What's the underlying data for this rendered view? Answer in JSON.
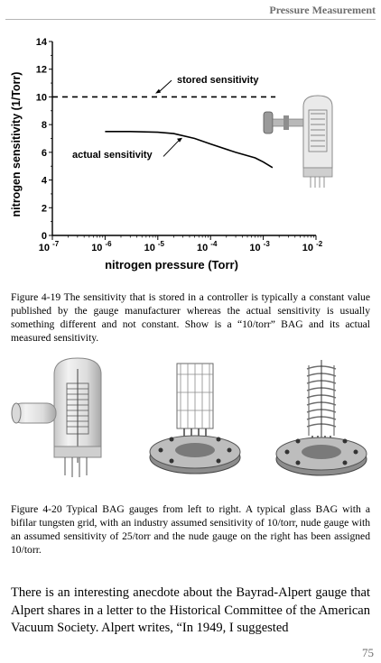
{
  "header": {
    "running_title": "Pressure Measurement"
  },
  "chart_data": {
    "type": "line",
    "xlabel": "nitrogen pressure (Torr)",
    "ylabel": "nitrogen sensitivity (1/Torr)",
    "x_scale": "log",
    "xlim": [
      1e-07,
      0.01
    ],
    "ylim": [
      0,
      14
    ],
    "yticks": [
      0,
      2,
      4,
      6,
      8,
      10,
      12,
      14
    ],
    "xtick_labels": [
      {
        "base": "10",
        "exp": "-7"
      },
      {
        "base": "10",
        "exp": "-6"
      },
      {
        "base": "10",
        "exp": "-5"
      },
      {
        "base": "10",
        "exp": "-4"
      },
      {
        "base": "10",
        "exp": "-3"
      },
      {
        "base": "10",
        "exp": "-2"
      }
    ],
    "series": [
      {
        "name": "stored sensitivity",
        "style": "dashed",
        "x": [
          1e-07,
          0.0017
        ],
        "y": [
          10,
          10
        ]
      },
      {
        "name": "actual sensitivity",
        "style": "solid",
        "x": [
          1e-06,
          3e-06,
          1e-05,
          2e-05,
          5e-05,
          0.0001,
          0.0003,
          0.0007,
          0.001,
          0.0015
        ],
        "y": [
          7.5,
          7.5,
          7.45,
          7.35,
          7.0,
          6.6,
          6.0,
          5.6,
          5.3,
          4.9
        ]
      }
    ],
    "annotations": [
      {
        "text": "stored sensitivity"
      },
      {
        "text": "actual sensitivity"
      }
    ]
  },
  "caption1": "Figure 4-19 The sensitivity that is stored in a controller is typically a constant value published by the gauge manufacturer whereas the actual sensitivity is usually something different and not constant. Show is a “10/torr” BAG and its actual measured sensitivity.",
  "caption2": "Figure 4-20 Typical BAG gauges from left to right. A typical glass BAG with a bifilar tungsten grid, with an industry assumed sensitivity of 10/torr, nude gauge with an assumed sensitivity of 25/torr and the nude gauge on the right has been assigned 10/torr.",
  "body_text": "There is an interesting anecdote about the Bayrad-Alpert gauge that Alpert shares in a letter to the Historical Committee of the American Vacuum Society. Alpert writes, “In 1949, I suggested",
  "page_number": "75",
  "images": [
    {
      "icon": "glass-bag-gauge-icon"
    },
    {
      "icon": "nude-gauge-cylindrical-grid-icon"
    },
    {
      "icon": "nude-gauge-helical-grid-icon"
    }
  ]
}
